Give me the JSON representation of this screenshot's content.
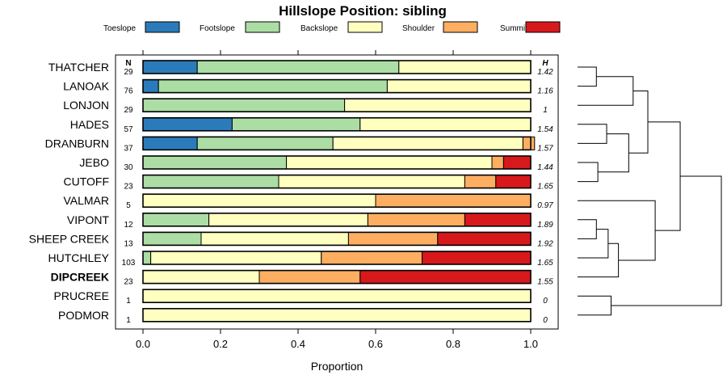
{
  "chart_data": {
    "type": "bar",
    "stacked": true,
    "orientation": "horizontal",
    "title": "Hillslope Position: sibling",
    "xlabel": "Proportion",
    "ylabel": "",
    "xlim": [
      0,
      1
    ],
    "x_ticks": [
      "0.0",
      "0.2",
      "0.4",
      "0.6",
      "0.8",
      "1.0"
    ],
    "x_tick_values": [
      0,
      0.2,
      0.4,
      0.6,
      0.8,
      1.0
    ],
    "n_header": "N",
    "h_header": "H",
    "legend_position": "top",
    "series": [
      {
        "name": "Toeslope",
        "color": "#2b7bba",
        "values": [
          0.14,
          0.04,
          0.0,
          0.23,
          0.14,
          0.0,
          0.0,
          0.0,
          0.0,
          0.0,
          0.0,
          0.0,
          0.0,
          0.0
        ]
      },
      {
        "name": "Footslope",
        "color": "#abdda4",
        "values": [
          0.52,
          0.59,
          0.52,
          0.33,
          0.35,
          0.37,
          0.35,
          0.0,
          0.17,
          0.15,
          0.02,
          0.0,
          0.0,
          0.0
        ]
      },
      {
        "name": "Backslope",
        "color": "#ffffbf",
        "values": [
          0.34,
          0.37,
          0.48,
          0.44,
          0.49,
          0.53,
          0.48,
          0.6,
          0.41,
          0.38,
          0.44,
          0.3,
          1.0,
          1.0
        ]
      },
      {
        "name": "Shoulder",
        "color": "#fdae61",
        "values": [
          0.0,
          0.0,
          0.0,
          0.0,
          0.03,
          0.03,
          0.08,
          0.4,
          0.25,
          0.23,
          0.26,
          0.26,
          0.0,
          0.0
        ]
      },
      {
        "name": "Summit",
        "color": "#d7191c",
        "values": [
          0.0,
          0.0,
          0.0,
          0.0,
          0.0,
          0.07,
          0.09,
          0.0,
          0.17,
          0.24,
          0.28,
          0.44,
          0.0,
          0.0
        ]
      }
    ],
    "rows": [
      {
        "label": "THATCHER",
        "n": "29",
        "h": "1.42",
        "bold": false
      },
      {
        "label": "LANOAK",
        "n": "76",
        "h": "1.16",
        "bold": false
      },
      {
        "label": "LONJON",
        "n": "29",
        "h": "1",
        "bold": false
      },
      {
        "label": "HADES",
        "n": "57",
        "h": "1.54",
        "bold": false
      },
      {
        "label": "DRANBURN",
        "n": "37",
        "h": "1.57",
        "bold": false
      },
      {
        "label": "JEBO",
        "n": "30",
        "h": "1.44",
        "bold": false
      },
      {
        "label": "CUTOFF",
        "n": "23",
        "h": "1.65",
        "bold": false
      },
      {
        "label": "VALMAR",
        "n": "5",
        "h": "0.97",
        "bold": false
      },
      {
        "label": "VIPONT",
        "n": "12",
        "h": "1.89",
        "bold": false
      },
      {
        "label": "SHEEP CREEK",
        "n": "13",
        "h": "1.92",
        "bold": false
      },
      {
        "label": "HUTCHLEY",
        "n": "103",
        "h": "1.65",
        "bold": false
      },
      {
        "label": "DIPCREEK",
        "n": "23",
        "h": "1.55",
        "bold": true
      },
      {
        "label": "PRUCREE",
        "n": "1",
        "h": "0",
        "bold": false
      },
      {
        "label": "PODMOR",
        "n": "1",
        "h": "0",
        "bold": false
      }
    ],
    "dendrogram": {
      "merges": [
        {
          "a": 0,
          "b": 1,
          "height": 0.15
        },
        {
          "a": 5,
          "b": 6,
          "height": 0.16
        },
        {
          "a": 12,
          "b": 13,
          "height": 0.25
        },
        {
          "a": 3,
          "b": 4,
          "height": 0.22
        },
        {
          "a": 8,
          "b": 9,
          "height": 0.15
        },
        {
          "a": "m4",
          "b": 10,
          "height": 0.23
        },
        {
          "a": "m5",
          "b": 11,
          "height": 0.3
        },
        {
          "a": "m3",
          "b": "m1",
          "height": 0.37
        },
        {
          "a": "m0",
          "b": 2,
          "height": 0.4
        },
        {
          "a": 7,
          "b": "m6",
          "height": 0.55
        },
        {
          "a": "m8",
          "b": "m7",
          "height": 0.5
        },
        {
          "a": "m10",
          "b": "m9",
          "height": 0.72
        },
        {
          "a": "m11",
          "b": "m2",
          "height": 1.0
        }
      ]
    }
  }
}
